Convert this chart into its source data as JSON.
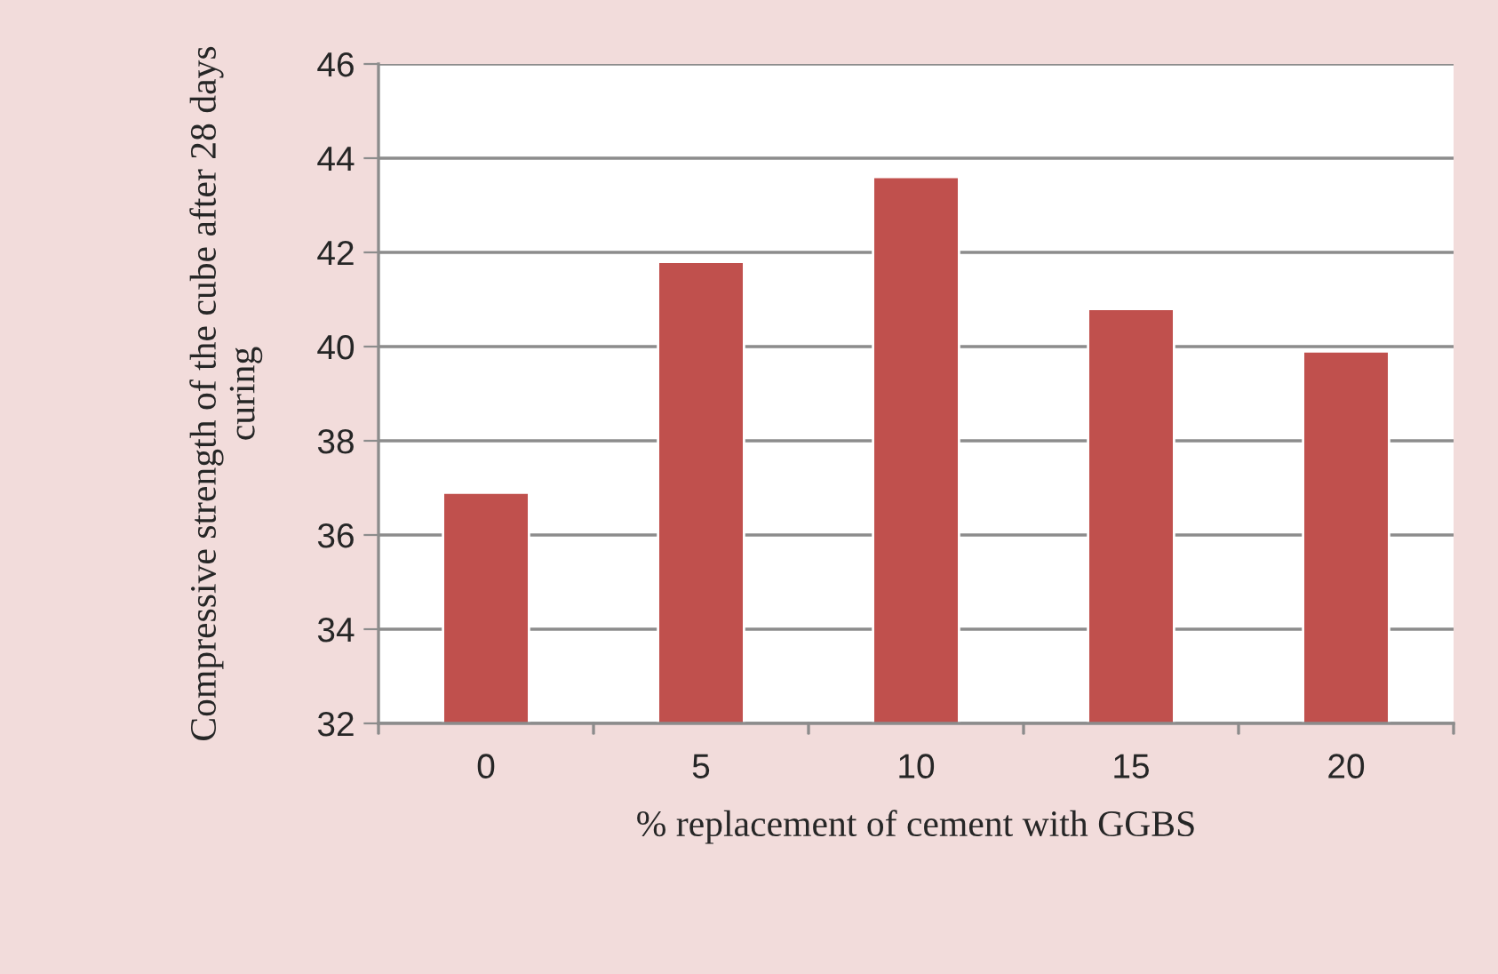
{
  "chart_data": {
    "type": "bar",
    "categories": [
      "0",
      "5",
      "10",
      "15",
      "20"
    ],
    "values": [
      36.9,
      41.8,
      43.6,
      40.8,
      39.9
    ],
    "color": "#c0504d",
    "xlabel": "% replacement of cement with GGBS",
    "ylabel": "Compressive strength of the cube after 28 days curing",
    "ylim": [
      32,
      46
    ],
    "yticks": [
      32,
      34,
      36,
      38,
      40,
      42,
      44,
      46
    ],
    "grid": "y",
    "legend": false
  }
}
